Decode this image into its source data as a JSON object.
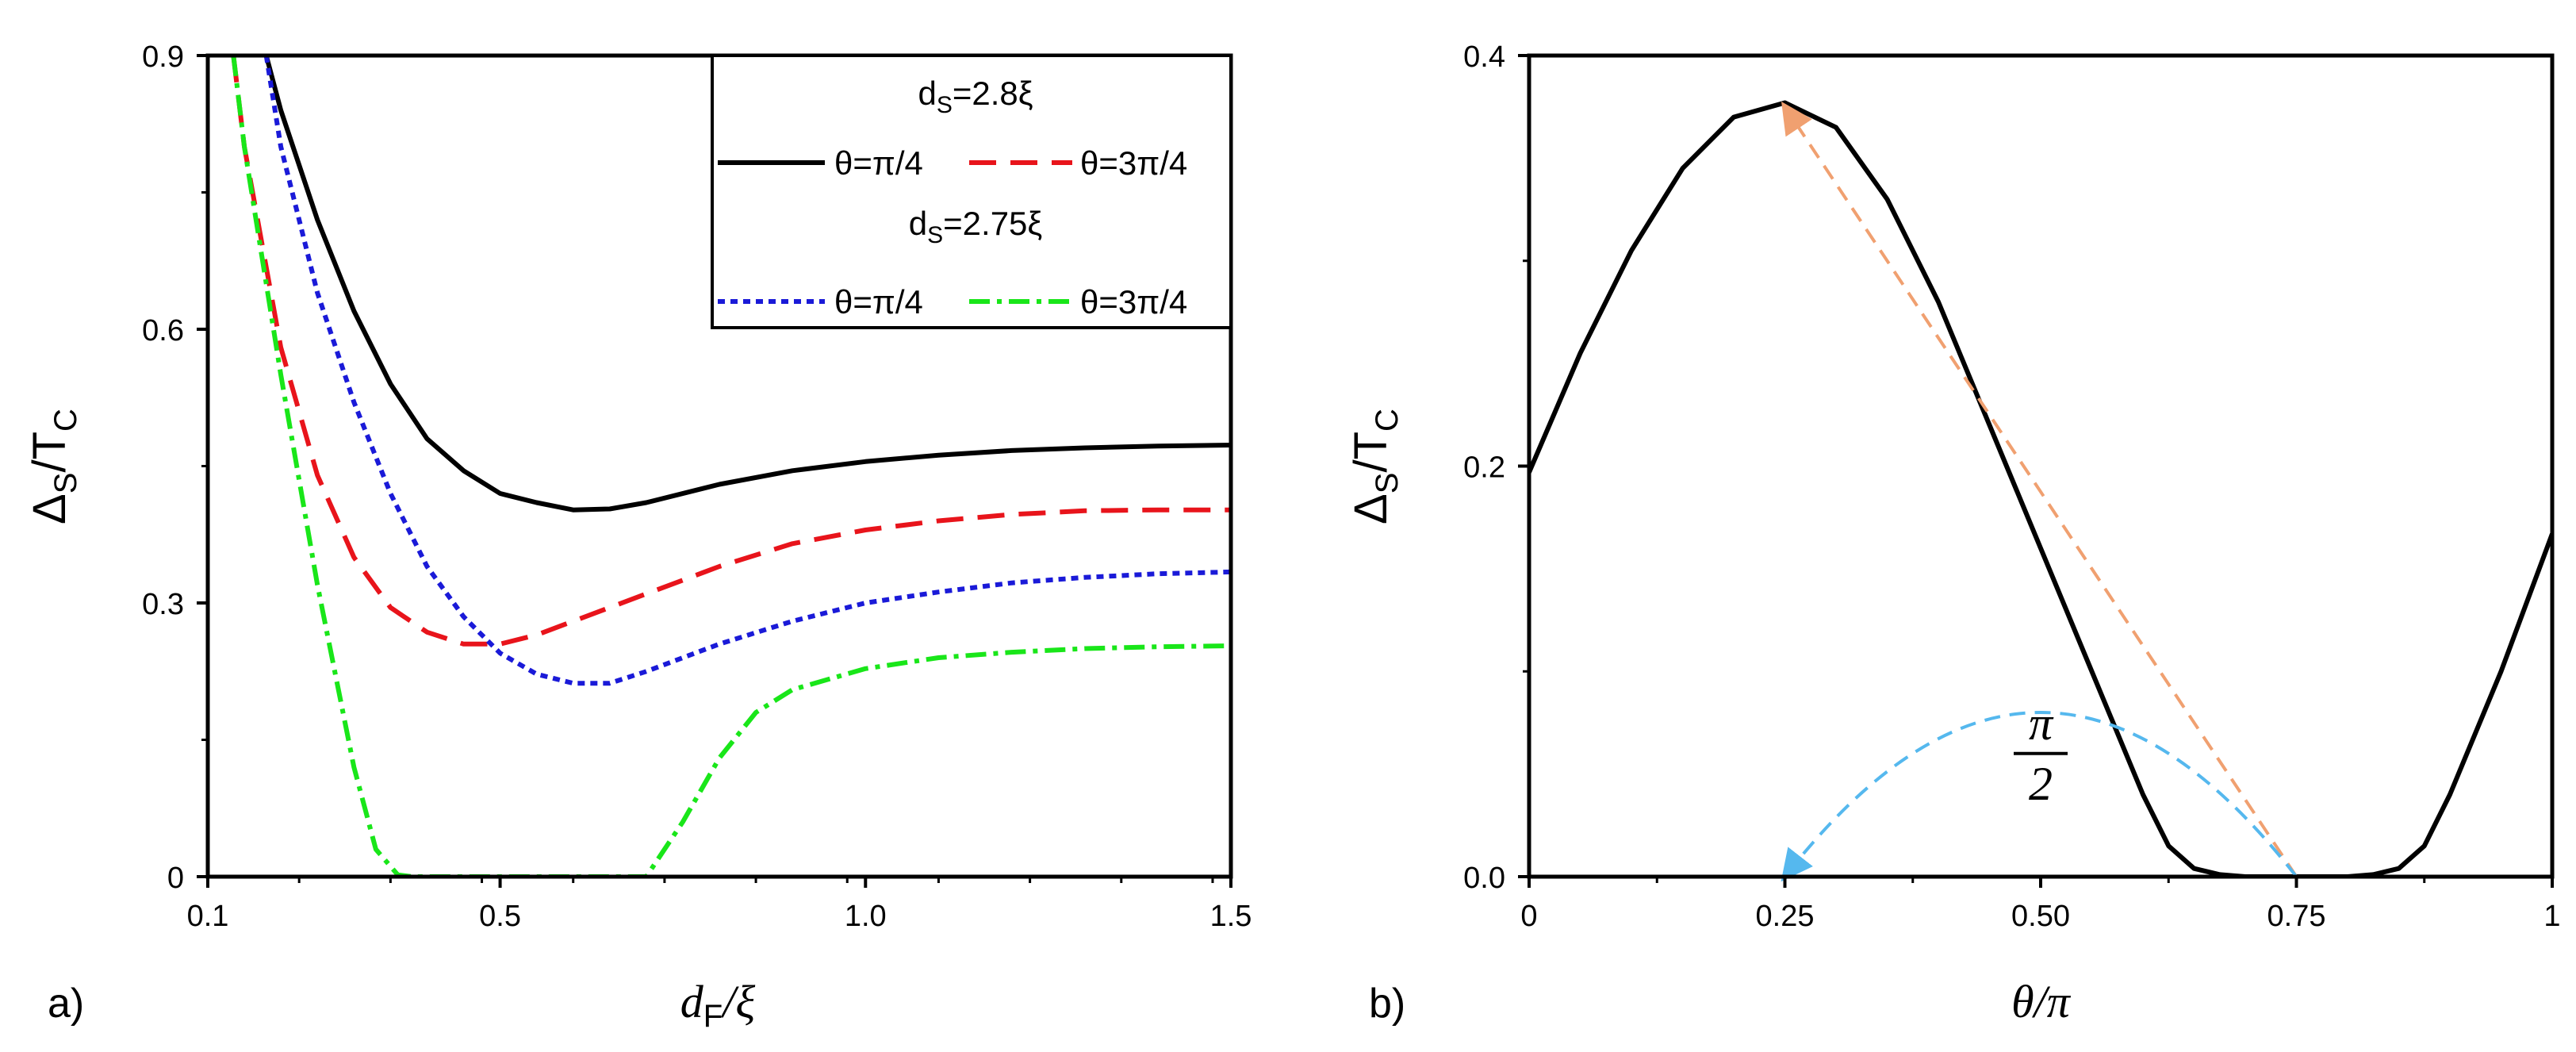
{
  "figure": {
    "panel_a_label": "a)",
    "panel_b_label": "b)"
  },
  "colors": {
    "axis": "#000000",
    "black": "#000000",
    "red": "#e8141b",
    "blue": "#1a1ad8",
    "green": "#19e619",
    "orange_arrow": "#f0a070",
    "blue_arrow": "#55b8ee"
  },
  "chart_data": [
    {
      "id": "a",
      "type": "line",
      "xlabel_main": "d",
      "xlabel_sub": "F",
      "xlabel_tail": "/ξ",
      "ylabel_main": "Δ",
      "ylabel_sub": "S",
      "ylabel_tail": "/T",
      "ylabel_sub2": "C",
      "xlim": [
        0.1,
        1.5
      ],
      "ylim": [
        0,
        0.9
      ],
      "xticks": [
        0.1,
        0.5,
        1.0,
        1.5
      ],
      "xtick_labels": [
        "0.1",
        "0.5",
        "1.0",
        "1.5"
      ],
      "yticks": [
        0,
        0.3,
        0.6,
        0.9
      ],
      "ytick_labels": [
        "0",
        "0.3",
        "0.6",
        "0.9"
      ],
      "legend": {
        "position": "top-right",
        "group1_title_main": "d",
        "group1_title_sub": "S",
        "group1_title_tail": "=2.8ξ",
        "group2_title_main": "d",
        "group2_title_sub": "S",
        "group2_title_tail": "=2.75ξ",
        "entries": [
          "θ=π/4",
          "θ=3π/4",
          "θ=π/4",
          "θ=3π/4"
        ]
      },
      "series": [
        {
          "name": "dS=2.8ξ, θ=π/4",
          "style": "solid",
          "color": "#000000",
          "x": [
            0.18,
            0.2,
            0.25,
            0.3,
            0.35,
            0.4,
            0.45,
            0.5,
            0.55,
            0.6,
            0.65,
            0.7,
            0.8,
            0.9,
            1.0,
            1.1,
            1.2,
            1.3,
            1.4,
            1.5
          ],
          "y": [
            0.9,
            0.84,
            0.72,
            0.62,
            0.54,
            0.48,
            0.445,
            0.42,
            0.41,
            0.402,
            0.403,
            0.41,
            0.43,
            0.445,
            0.455,
            0.462,
            0.467,
            0.47,
            0.472,
            0.473
          ]
        },
        {
          "name": "dS=2.8ξ, θ=3π/4",
          "style": "dashed",
          "color": "#e8141b",
          "x": [
            0.135,
            0.15,
            0.2,
            0.25,
            0.3,
            0.35,
            0.4,
            0.45,
            0.5,
            0.55,
            0.6,
            0.7,
            0.8,
            0.9,
            1.0,
            1.1,
            1.2,
            1.3,
            1.4,
            1.5
          ],
          "y": [
            0.9,
            0.8,
            0.58,
            0.44,
            0.35,
            0.295,
            0.268,
            0.255,
            0.255,
            0.265,
            0.28,
            0.31,
            0.34,
            0.365,
            0.38,
            0.39,
            0.397,
            0.401,
            0.402,
            0.402
          ]
        },
        {
          "name": "dS=2.75ξ, θ=π/4",
          "style": "dotted",
          "color": "#1a1ad8",
          "x": [
            0.18,
            0.2,
            0.25,
            0.3,
            0.35,
            0.4,
            0.45,
            0.5,
            0.55,
            0.6,
            0.65,
            0.7,
            0.8,
            0.9,
            1.0,
            1.1,
            1.2,
            1.3,
            1.4,
            1.5
          ],
          "y": [
            0.9,
            0.8,
            0.64,
            0.52,
            0.42,
            0.34,
            0.285,
            0.245,
            0.222,
            0.212,
            0.212,
            0.225,
            0.255,
            0.28,
            0.3,
            0.312,
            0.322,
            0.328,
            0.332,
            0.334
          ]
        },
        {
          "name": "dS=2.75ξ, θ=3π/4",
          "style": "dashdot",
          "color": "#19e619",
          "x": [
            0.135,
            0.15,
            0.2,
            0.25,
            0.3,
            0.33,
            0.36,
            0.38,
            0.5,
            0.6,
            0.7,
            0.75,
            0.8,
            0.85,
            0.9,
            1.0,
            1.1,
            1.2,
            1.3,
            1.4,
            1.5
          ],
          "y": [
            0.9,
            0.8,
            0.55,
            0.32,
            0.12,
            0.03,
            0.002,
            0.0,
            0.0,
            0.0,
            0.0,
            0.06,
            0.13,
            0.18,
            0.205,
            0.228,
            0.24,
            0.246,
            0.25,
            0.252,
            0.253
          ]
        }
      ]
    },
    {
      "id": "b",
      "type": "line",
      "xlabel": "θ/π",
      "ylabel_main": "Δ",
      "ylabel_sub": "S",
      "ylabel_tail": "/T",
      "ylabel_sub2": "C",
      "xlim": [
        0,
        1
      ],
      "ylim": [
        0,
        0.4
      ],
      "xticks": [
        0,
        0.25,
        0.5,
        0.75,
        1
      ],
      "xtick_labels": [
        "0",
        "0.25",
        "0.50",
        "0.75",
        "1"
      ],
      "yticks": [
        0,
        0.2,
        0.4
      ],
      "ytick_labels": [
        "0.0",
        "0.2",
        "0.4"
      ],
      "annotation": {
        "numerator": "π",
        "denominator": "2",
        "x": 0.5,
        "y": 0.06
      },
      "arrows": [
        {
          "name": "orange-arrow",
          "from": [
            0.75,
            0.0
          ],
          "to": [
            0.25,
            0.375
          ],
          "color": "#f0a070"
        },
        {
          "name": "blue-arc-arrow",
          "from": [
            0.75,
            0.0
          ],
          "to": [
            0.25,
            0.0
          ],
          "peak": 0.08,
          "color": "#55b8ee"
        }
      ],
      "series": [
        {
          "name": "Δ_S/T_C vs θ/π",
          "style": "solid",
          "color": "#000000",
          "x": [
            0,
            0.05,
            0.1,
            0.15,
            0.2,
            0.25,
            0.3,
            0.35,
            0.4,
            0.45,
            0.5,
            0.55,
            0.6,
            0.625,
            0.65,
            0.675,
            0.7,
            0.75,
            0.8,
            0.825,
            0.85,
            0.875,
            0.9,
            0.95,
            1.0
          ],
          "y": [
            0.197,
            0.255,
            0.305,
            0.345,
            0.37,
            0.377,
            0.365,
            0.33,
            0.28,
            0.22,
            0.16,
            0.1,
            0.04,
            0.015,
            0.004,
            0.001,
            0.0,
            0.0,
            0.0,
            0.001,
            0.004,
            0.015,
            0.04,
            0.1,
            0.167
          ]
        }
      ]
    }
  ]
}
